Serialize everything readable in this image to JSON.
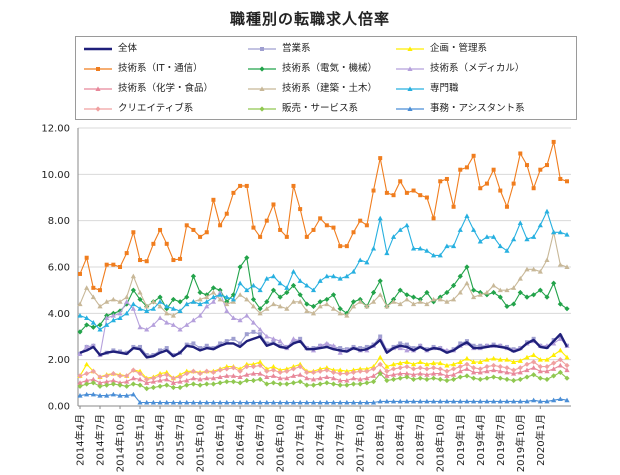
{
  "chart_data": {
    "type": "line",
    "title": "職種別の転職求人倍率",
    "xlabel": "",
    "ylabel": "",
    "ylim": [
      0,
      12
    ],
    "yticks": [
      "0.00",
      "2.00",
      "4.00",
      "6.00",
      "8.00",
      "10.00",
      "12.00"
    ],
    "grid": true,
    "legend_position": "top",
    "x_tick_labels": [
      "2014年4月",
      "2014年7月",
      "2014年10月",
      "2015年1月",
      "2015年4月",
      "2015年7月",
      "2015年10月",
      "2016年1月",
      "2016年4月",
      "2016年7月",
      "2016年10月",
      "2017年1月",
      "2017年4月",
      "2017年7月",
      "2017年10月",
      "2018年1月",
      "2018年4月",
      "2018年7月",
      "2018年10月",
      "2019年1月",
      "2019年4月",
      "2019年7月",
      "2019年10月",
      "2020年1月"
    ],
    "series": [
      {
        "name": "全体",
        "color": "#1f1f7a",
        "marker": "none",
        "width": 2.4,
        "values": [
          2.3,
          2.4,
          2.55,
          2.2,
          2.3,
          2.35,
          2.3,
          2.25,
          2.5,
          2.45,
          2.1,
          2.15,
          2.3,
          2.4,
          2.15,
          2.3,
          2.6,
          2.55,
          2.4,
          2.5,
          2.45,
          2.6,
          2.7,
          2.7,
          2.55,
          2.8,
          2.9,
          3.0,
          2.6,
          2.7,
          2.55,
          2.5,
          2.7,
          2.8,
          2.45,
          2.45,
          2.5,
          2.55,
          2.45,
          2.4,
          2.35,
          2.5,
          2.4,
          2.45,
          2.6,
          2.85,
          2.3,
          2.5,
          2.6,
          2.55,
          2.4,
          2.55,
          2.4,
          2.5,
          2.45,
          2.3,
          2.4,
          2.6,
          2.75,
          2.5,
          2.5,
          2.55,
          2.6,
          2.55,
          2.5,
          2.35,
          2.45,
          2.7,
          2.85,
          2.55,
          2.5,
          2.8,
          3.1,
          2.55
        ]
      },
      {
        "name": "営業系",
        "color": "#9f9fd0",
        "marker": "square",
        "values": [
          2.25,
          2.55,
          2.6,
          2.2,
          2.3,
          2.4,
          2.35,
          2.3,
          2.55,
          2.55,
          2.2,
          2.2,
          2.4,
          2.5,
          2.2,
          2.3,
          2.65,
          2.7,
          2.5,
          2.6,
          2.5,
          2.7,
          2.8,
          2.9,
          2.7,
          3.1,
          3.2,
          3.1,
          2.7,
          2.75,
          2.6,
          2.55,
          2.75,
          2.9,
          2.5,
          2.5,
          2.6,
          2.65,
          2.55,
          2.5,
          2.45,
          2.55,
          2.5,
          2.55,
          2.65,
          3.0,
          2.4,
          2.55,
          2.7,
          2.65,
          2.5,
          2.6,
          2.45,
          2.55,
          2.5,
          2.35,
          2.45,
          2.7,
          2.8,
          2.6,
          2.6,
          2.6,
          2.65,
          2.6,
          2.55,
          2.45,
          2.5,
          2.75,
          2.9,
          2.6,
          2.55,
          2.85,
          3.0,
          2.6
        ]
      },
      {
        "name": "企画・管理系",
        "color": "#ffee00",
        "marker": "triangle",
        "values": [
          1.3,
          1.8,
          1.5,
          1.25,
          1.35,
          1.4,
          1.35,
          1.3,
          1.55,
          1.5,
          1.2,
          1.25,
          1.4,
          1.45,
          1.2,
          1.35,
          1.5,
          1.5,
          1.45,
          1.5,
          1.5,
          1.6,
          1.7,
          1.7,
          1.6,
          1.8,
          1.8,
          1.9,
          1.6,
          1.7,
          1.55,
          1.6,
          1.7,
          1.8,
          1.5,
          1.5,
          1.6,
          1.65,
          1.55,
          1.55,
          1.5,
          1.55,
          1.6,
          1.6,
          1.7,
          2.1,
          1.7,
          1.8,
          1.85,
          1.9,
          1.8,
          1.9,
          1.8,
          1.85,
          1.85,
          1.75,
          1.8,
          1.9,
          2.05,
          1.9,
          1.9,
          2.0,
          2.05,
          2.0,
          2.0,
          1.9,
          1.95,
          2.1,
          2.2,
          2.0,
          2.0,
          2.2,
          2.4,
          2.1
        ]
      },
      {
        "name": "技術系（IT・通信）",
        "color": "#f07d1e",
        "marker": "square",
        "values": [
          5.7,
          6.4,
          5.1,
          5.0,
          6.1,
          6.1,
          6.0,
          6.6,
          7.5,
          6.3,
          6.25,
          7.0,
          7.6,
          7.0,
          6.3,
          6.35,
          7.8,
          7.6,
          7.3,
          7.5,
          8.9,
          7.8,
          8.3,
          9.2,
          9.5,
          9.5,
          7.7,
          7.3,
          8.0,
          8.7,
          7.6,
          7.3,
          9.5,
          8.5,
          7.3,
          7.6,
          8.1,
          7.8,
          7.7,
          6.9,
          6.9,
          7.5,
          8.0,
          7.8,
          9.3,
          10.7,
          9.2,
          9.1,
          9.7,
          9.2,
          9.3,
          9.1,
          9.0,
          8.1,
          9.7,
          9.8,
          8.6,
          10.2,
          10.3,
          10.8,
          9.4,
          9.6,
          10.2,
          9.3,
          8.6,
          9.6,
          10.9,
          10.4,
          9.4,
          10.2,
          10.4,
          11.4,
          9.8,
          9.7
        ]
      },
      {
        "name": "技術系（電気・機械）",
        "color": "#22a34a",
        "marker": "diamond",
        "values": [
          3.2,
          3.5,
          3.4,
          3.5,
          3.9,
          4.0,
          4.1,
          4.4,
          5.0,
          4.6,
          4.3,
          4.5,
          4.7,
          4.2,
          4.6,
          4.5,
          4.7,
          5.6,
          4.9,
          4.8,
          5.1,
          5.0,
          4.5,
          4.8,
          6.0,
          6.4,
          4.6,
          4.2,
          4.5,
          5.0,
          4.7,
          4.9,
          5.2,
          4.8,
          4.4,
          4.3,
          4.5,
          4.6,
          4.8,
          4.2,
          4.0,
          4.5,
          4.6,
          4.3,
          4.9,
          5.4,
          4.3,
          4.6,
          5.0,
          4.8,
          4.7,
          4.6,
          4.9,
          4.5,
          4.7,
          4.9,
          5.2,
          5.6,
          6.0,
          5.0,
          4.9,
          4.8,
          4.9,
          4.7,
          4.3,
          4.4,
          4.9,
          4.7,
          4.8,
          5.0,
          4.7,
          5.3,
          4.4,
          4.2
        ]
      },
      {
        "name": "技術系（メディカル）",
        "color": "#b5a0dc",
        "marker": "triangle",
        "values": [
          2.25,
          2.55,
          2.6,
          2.2,
          3.8,
          3.9,
          4.0,
          4.5,
          4.2,
          3.4,
          3.3,
          3.5,
          3.8,
          3.6,
          3.5,
          3.3,
          3.5,
          3.7,
          3.9,
          4.3,
          4.5,
          4.9,
          4.1,
          3.8,
          3.7,
          3.9,
          3.6,
          3.3,
          3.0,
          2.9,
          2.8,
          2.5,
          2.9,
          2.8,
          2.5,
          2.4,
          2.6,
          2.7,
          2.6,
          2.3,
          2.4,
          2.5,
          2.4,
          2.4,
          2.6,
          2.9,
          2.4,
          2.5,
          2.5,
          2.4,
          2.4,
          2.6,
          2.4,
          2.5,
          2.5,
          2.4,
          2.4,
          2.6,
          2.7,
          2.5,
          2.5,
          2.6,
          2.6,
          2.6,
          2.5,
          2.4,
          2.5,
          2.7,
          2.8,
          2.6,
          2.6,
          2.7,
          2.9,
          2.6
        ]
      },
      {
        "name": "技術系（化学・食品）",
        "color": "#e8889a",
        "marker": "triangle",
        "values": [
          1.0,
          1.1,
          1.15,
          1.0,
          1.05,
          1.1,
          1.0,
          1.05,
          1.2,
          1.15,
          1.0,
          1.05,
          1.1,
          1.15,
          1.0,
          1.05,
          1.1,
          1.2,
          1.15,
          1.2,
          1.2,
          1.25,
          1.3,
          1.3,
          1.25,
          1.35,
          1.4,
          1.4,
          1.25,
          1.3,
          1.2,
          1.2,
          1.3,
          1.35,
          1.2,
          1.15,
          1.2,
          1.25,
          1.2,
          1.1,
          1.1,
          1.2,
          1.15,
          1.2,
          1.3,
          1.5,
          1.3,
          1.35,
          1.4,
          1.4,
          1.35,
          1.4,
          1.35,
          1.4,
          1.4,
          1.3,
          1.35,
          1.5,
          1.6,
          1.45,
          1.45,
          1.5,
          1.55,
          1.5,
          1.45,
          1.4,
          1.45,
          1.55,
          1.65,
          1.5,
          1.5,
          1.6,
          1.75,
          1.55
        ]
      },
      {
        "name": "技術系（建築・土木）",
        "color": "#c8b898",
        "marker": "triangle",
        "values": [
          4.4,
          5.1,
          4.7,
          4.3,
          4.5,
          4.6,
          4.5,
          4.7,
          5.6,
          4.9,
          4.3,
          4.5,
          4.3,
          4.0,
          3.9,
          4.1,
          4.4,
          4.5,
          4.6,
          4.7,
          4.9,
          4.6,
          4.4,
          4.5,
          4.8,
          4.6,
          4.3,
          4.0,
          4.2,
          4.4,
          4.3,
          4.2,
          4.5,
          4.5,
          4.1,
          4.0,
          4.3,
          4.4,
          4.2,
          4.0,
          3.9,
          4.3,
          4.5,
          4.3,
          4.5,
          4.8,
          4.3,
          4.5,
          4.4,
          4.6,
          4.4,
          4.5,
          4.4,
          4.6,
          4.6,
          4.5,
          4.6,
          4.9,
          5.3,
          4.7,
          4.8,
          4.9,
          5.2,
          5.0,
          5.0,
          5.1,
          5.5,
          5.9,
          5.9,
          5.8,
          6.3,
          7.5,
          6.1,
          6.0
        ]
      },
      {
        "name": "専門職",
        "color": "#27b0e0",
        "marker": "triangle",
        "values": [
          3.9,
          3.8,
          3.6,
          3.3,
          3.5,
          3.7,
          3.8,
          4.0,
          4.4,
          4.2,
          4.1,
          4.2,
          4.5,
          4.3,
          4.2,
          4.1,
          4.4,
          4.5,
          4.4,
          4.5,
          4.7,
          4.8,
          4.7,
          4.6,
          5.3,
          5.0,
          5.2,
          5.0,
          5.5,
          5.6,
          5.3,
          5.1,
          5.8,
          5.4,
          5.2,
          5.0,
          5.4,
          5.6,
          5.6,
          5.5,
          5.6,
          5.8,
          6.3,
          6.2,
          6.8,
          8.1,
          6.6,
          7.3,
          7.6,
          7.8,
          6.8,
          6.8,
          6.7,
          6.5,
          6.5,
          6.9,
          6.9,
          7.6,
          8.2,
          7.6,
          7.1,
          7.3,
          7.3,
          6.9,
          6.7,
          7.2,
          7.9,
          7.2,
          7.3,
          7.8,
          8.4,
          7.5,
          7.5,
          7.4
        ]
      },
      {
        "name": "クリエイティブ系",
        "color": "#f0a0a0",
        "marker": "diamond",
        "values": [
          1.3,
          1.4,
          1.5,
          1.25,
          1.3,
          1.4,
          1.3,
          1.3,
          1.55,
          1.4,
          1.15,
          1.2,
          1.3,
          1.35,
          1.2,
          1.25,
          1.4,
          1.5,
          1.4,
          1.5,
          1.45,
          1.55,
          1.6,
          1.65,
          1.5,
          1.7,
          1.7,
          1.75,
          1.5,
          1.55,
          1.45,
          1.5,
          1.6,
          1.7,
          1.45,
          1.45,
          1.5,
          1.55,
          1.45,
          1.4,
          1.4,
          1.45,
          1.5,
          1.5,
          1.6,
          1.8,
          1.5,
          1.6,
          1.65,
          1.7,
          1.6,
          1.65,
          1.6,
          1.65,
          1.6,
          1.5,
          1.6,
          1.7,
          1.8,
          1.65,
          1.6,
          1.7,
          1.75,
          1.7,
          1.65,
          1.55,
          1.65,
          1.8,
          1.9,
          1.7,
          1.7,
          1.85,
          2.0,
          1.75
        ]
      },
      {
        "name": "販売・サービス系",
        "color": "#90c850",
        "marker": "diamond",
        "values": [
          0.85,
          0.95,
          1.0,
          0.85,
          0.9,
          0.95,
          0.9,
          0.85,
          0.95,
          0.9,
          0.75,
          0.8,
          0.85,
          0.9,
          0.8,
          0.8,
          0.9,
          0.95,
          0.9,
          0.95,
          0.95,
          1.0,
          1.05,
          1.05,
          1.0,
          1.1,
          1.1,
          1.15,
          0.95,
          1.0,
          0.95,
          0.95,
          1.0,
          1.05,
          0.9,
          0.9,
          0.95,
          1.0,
          0.95,
          0.9,
          0.9,
          0.95,
          0.95,
          1.0,
          1.05,
          1.4,
          1.1,
          1.15,
          1.2,
          1.25,
          1.15,
          1.2,
          1.15,
          1.2,
          1.15,
          1.1,
          1.15,
          1.25,
          1.3,
          1.2,
          1.15,
          1.2,
          1.25,
          1.2,
          1.15,
          1.1,
          1.15,
          1.25,
          1.35,
          1.2,
          1.15,
          1.3,
          1.45,
          1.2
        ]
      },
      {
        "name": "事務・アシスタント系",
        "color": "#4a8ed6",
        "marker": "triangle",
        "values": [
          0.45,
          0.5,
          0.5,
          0.45,
          0.45,
          0.5,
          0.45,
          0.45,
          0.5,
          0.15,
          0.15,
          0.15,
          0.15,
          0.15,
          0.15,
          0.15,
          0.15,
          0.15,
          0.15,
          0.15,
          0.15,
          0.15,
          0.15,
          0.15,
          0.15,
          0.15,
          0.15,
          0.15,
          0.15,
          0.15,
          0.15,
          0.15,
          0.15,
          0.15,
          0.15,
          0.15,
          0.15,
          0.15,
          0.15,
          0.15,
          0.15,
          0.15,
          0.15,
          0.15,
          0.15,
          0.2,
          0.2,
          0.2,
          0.2,
          0.2,
          0.2,
          0.2,
          0.2,
          0.2,
          0.2,
          0.2,
          0.2,
          0.2,
          0.2,
          0.2,
          0.2,
          0.2,
          0.2,
          0.2,
          0.2,
          0.2,
          0.2,
          0.2,
          0.25,
          0.2,
          0.2,
          0.25,
          0.3,
          0.25
        ]
      }
    ]
  }
}
